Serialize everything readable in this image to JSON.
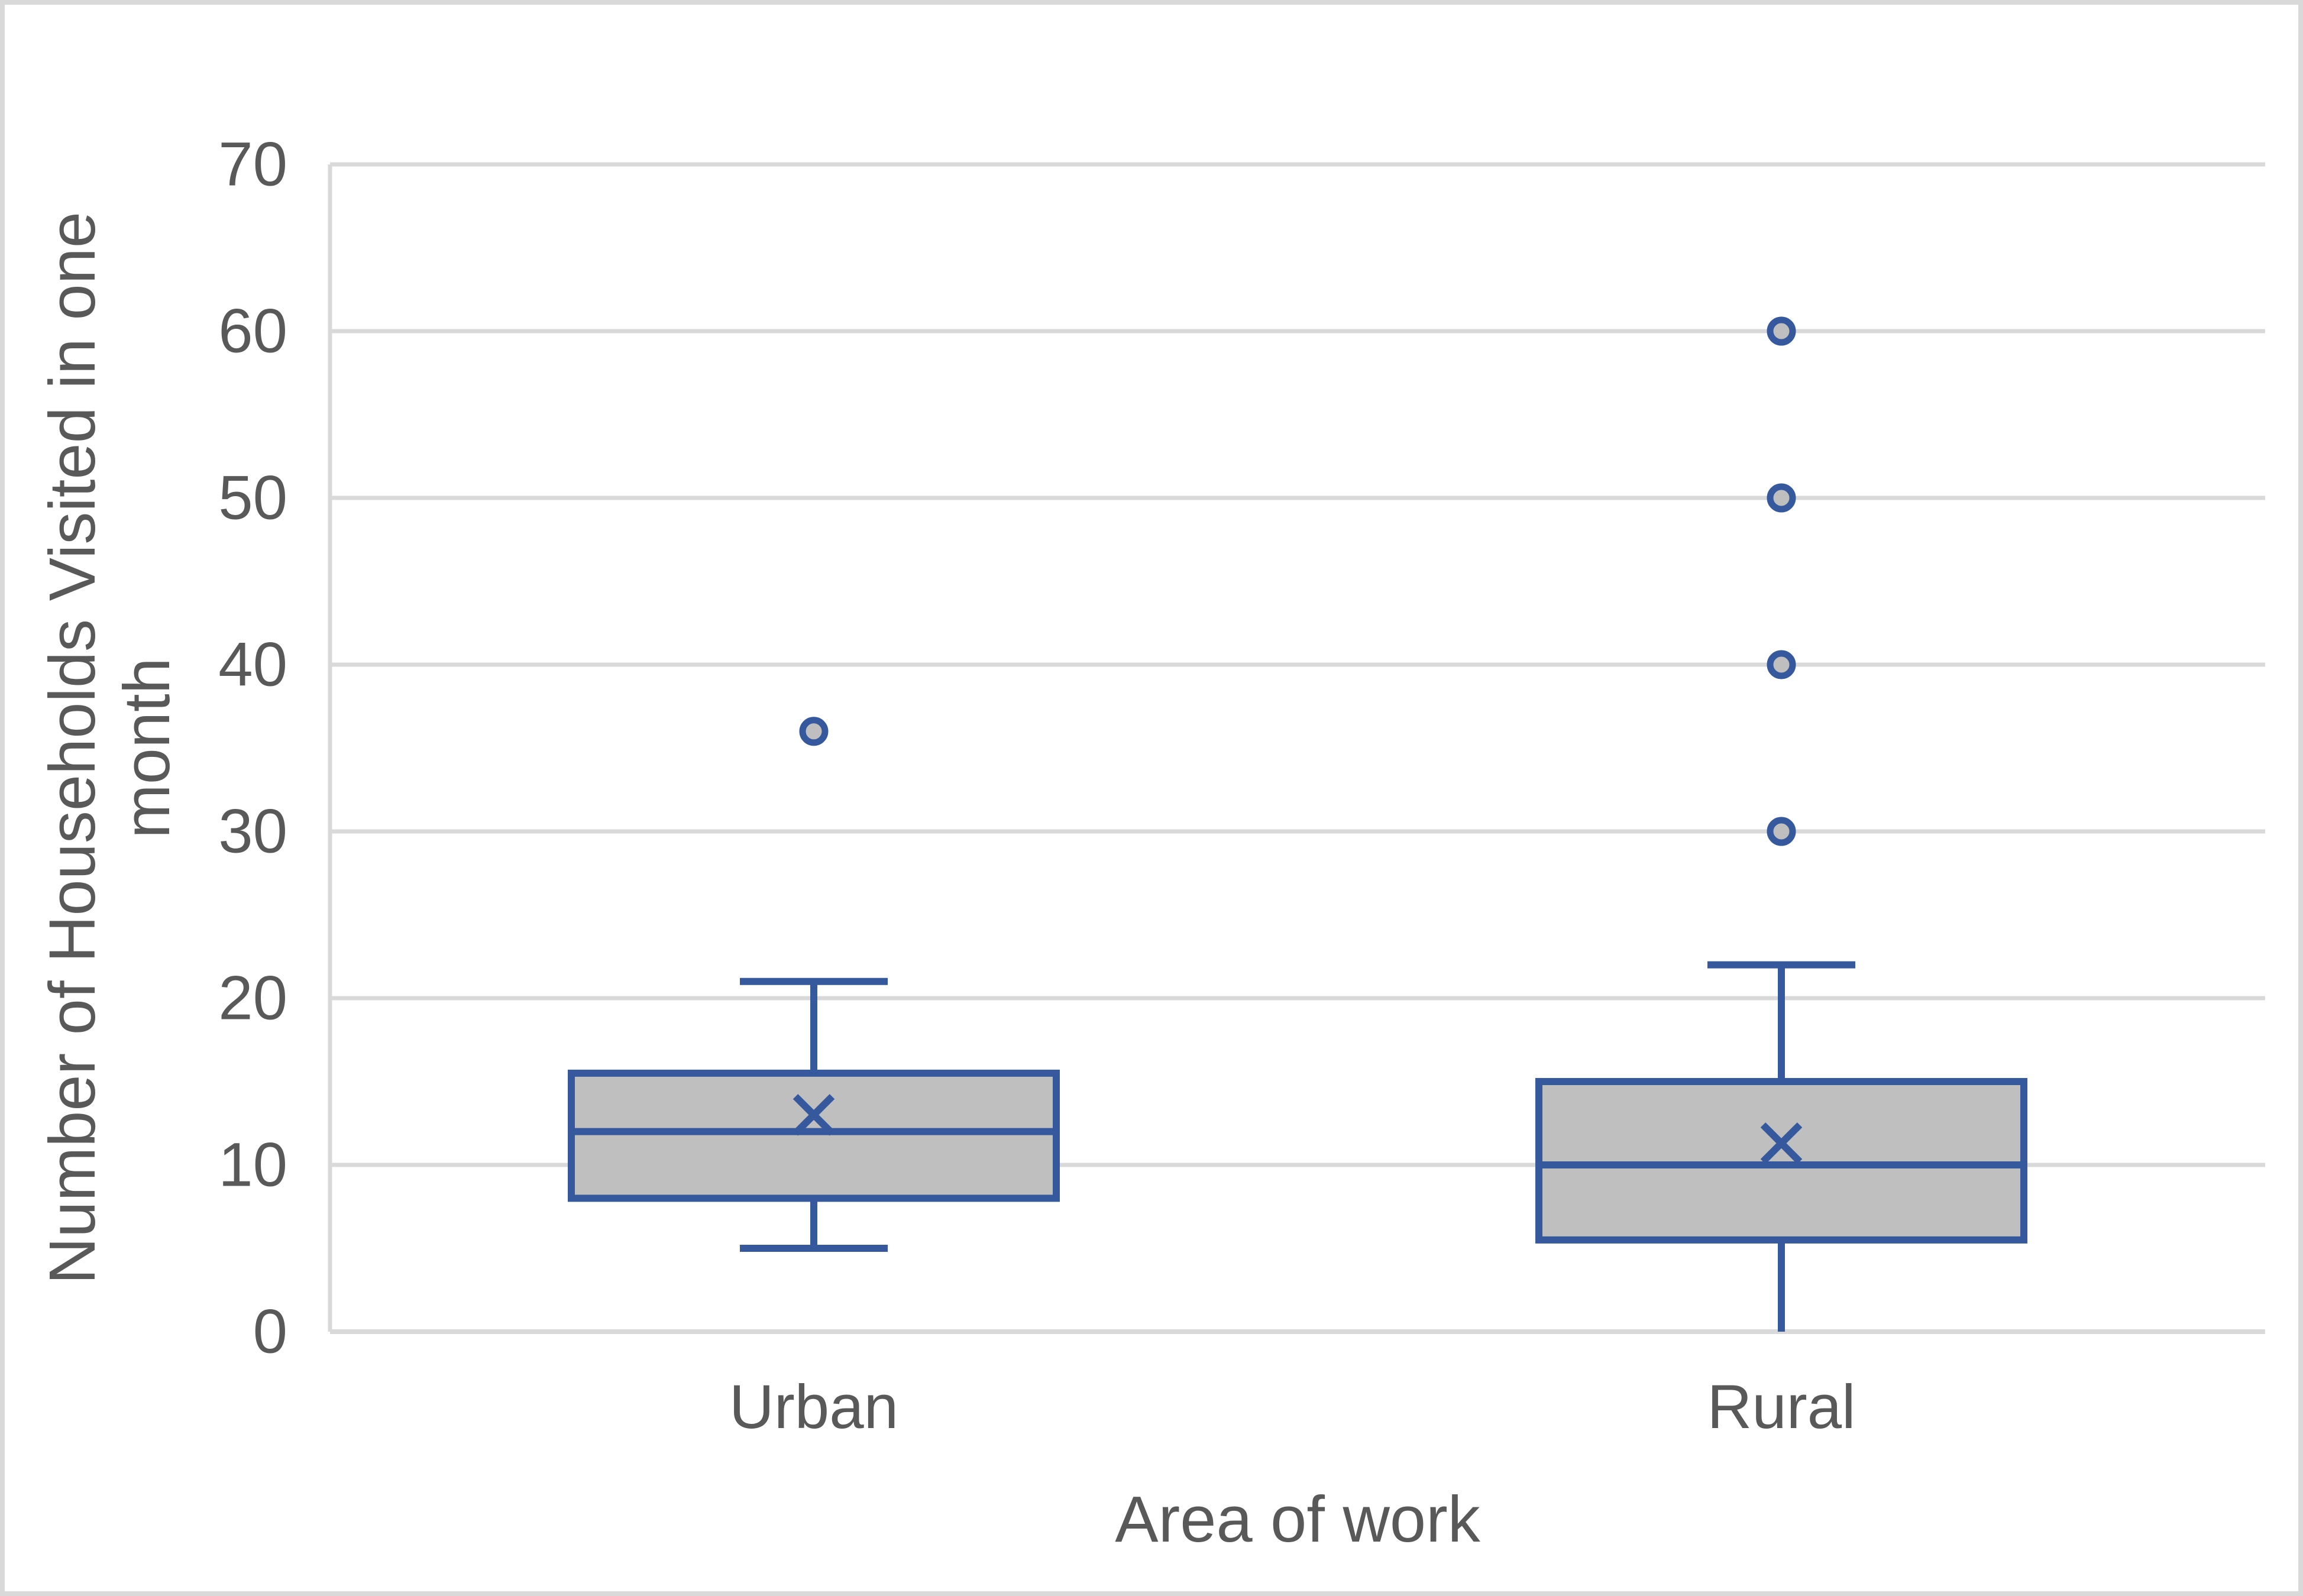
{
  "figure": {
    "background": "#FFFFFF",
    "outer_border_color": "#D9D9D9",
    "text_color": "#595959"
  },
  "chart_data": {
    "type": "boxplot",
    "title": "",
    "xlabel": "Area of work",
    "ylabel": "Number of Households Visited in one month",
    "ylabel_lines": [
      "Number of Households Visited in one",
      "month"
    ],
    "categories": [
      "Urban",
      "Rural"
    ],
    "y_axis": {
      "min": 0,
      "max": 70,
      "tick_interval": 10,
      "tick_labels": [
        "0",
        "10",
        "20",
        "30",
        "40",
        "50",
        "60",
        "70"
      ]
    },
    "grid": true,
    "legend": false,
    "series": [
      {
        "name": "Urban",
        "whisker_low": 5,
        "q1": 8,
        "median": 12,
        "q3": 15.5,
        "whisker_high": 21,
        "mean": 13,
        "outliers": [
          36
        ],
        "cap_low": true,
        "cap_high": true
      },
      {
        "name": "Rural",
        "whisker_low": 0,
        "q1": 5.5,
        "median": 10,
        "q3": 15,
        "whisker_high": 22,
        "mean": 11.3,
        "outliers": [
          30,
          40,
          50,
          60
        ],
        "cap_low": false,
        "cap_high": true
      }
    ],
    "colors": {
      "box_fill": "#BFBFBF",
      "box_stroke": "#36599E",
      "gridline": "#D9D9D9",
      "axis_line": "#D9D9D9"
    }
  }
}
